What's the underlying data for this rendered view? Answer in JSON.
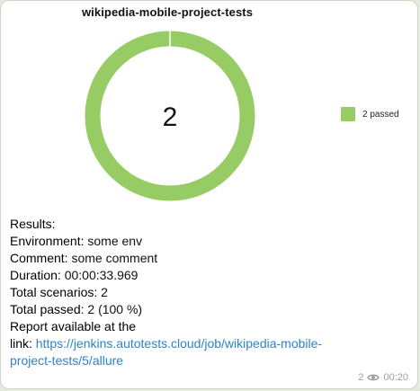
{
  "chart": {
    "title": "wikipedia-mobile-project-tests",
    "center_value": "2",
    "legend_label": "2 passed",
    "color": "#97cc64"
  },
  "chart_data": {
    "type": "pie",
    "title": "wikipedia-mobile-project-tests",
    "categories": [
      "passed"
    ],
    "values": [
      2
    ],
    "legend": [
      "2 passed"
    ],
    "legend_placement": "right"
  },
  "report": {
    "results_label": "Results:",
    "environment_label": "Environment:",
    "environment_value": "some env",
    "comment_label": "Comment:",
    "comment_value": "some comment",
    "duration_label": "Duration:",
    "duration_value": "00:00:33.969",
    "total_scenarios_label": "Total scenarios:",
    "total_scenarios_value": "2",
    "total_passed_label": "Total passed:",
    "total_passed_value": "2 (100 %)",
    "report_label": "Report available at the",
    "link_label": "link:",
    "link_url_line1": "https://jenkins.autotests.cloud/job/wikipedia-mobile-",
    "link_url_line2": "project-tests/5/allure"
  },
  "meta": {
    "views": "2",
    "time": "00:20",
    "icon": "eye-icon"
  }
}
